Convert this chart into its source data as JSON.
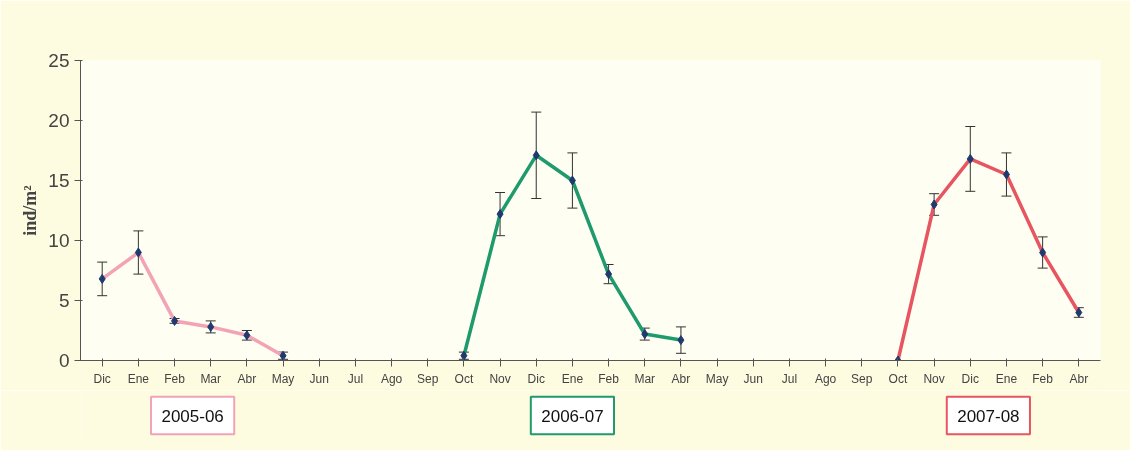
{
  "chart_data": {
    "type": "line",
    "ylabel": "ind/m²",
    "categories": [
      "Dic",
      "Ene",
      "Feb",
      "Mar",
      "Abr",
      "May",
      "Jun",
      "Jul",
      "Ago",
      "Sep",
      "Oct",
      "Nov",
      "Dic",
      "Ene",
      "Feb",
      "Mar",
      "Abr",
      "May",
      "Jun",
      "Jul",
      "Ago",
      "Sep",
      "Oct",
      "Nov",
      "Dic",
      "Ene",
      "Feb",
      "Abr"
    ],
    "series": [
      {
        "name": "2005-06",
        "color": "#f2a3b5",
        "values": [
          6.8,
          9.0,
          3.3,
          2.8,
          2.1,
          0.4,
          null,
          null,
          null,
          null,
          null,
          null,
          null,
          null,
          null,
          null,
          null,
          null,
          null,
          null,
          null,
          null,
          null,
          null,
          null,
          null,
          null,
          null
        ],
        "errors": [
          1.4,
          1.8,
          0.2,
          0.5,
          0.4,
          0.3,
          null,
          null,
          null,
          null,
          null,
          null,
          null,
          null,
          null,
          null,
          null,
          null,
          null,
          null,
          null,
          null,
          null,
          null,
          null,
          null,
          null,
          null
        ]
      },
      {
        "name": "2006-07",
        "color": "#1e9a6c",
        "values": [
          null,
          null,
          null,
          null,
          null,
          null,
          null,
          null,
          null,
          null,
          0.4,
          12.2,
          17.1,
          15.0,
          7.2,
          2.2,
          1.7,
          null,
          null,
          null,
          null,
          null,
          null,
          null,
          null,
          null,
          null,
          null
        ],
        "errors": [
          null,
          null,
          null,
          null,
          null,
          null,
          null,
          null,
          null,
          null,
          0.3,
          1.8,
          3.6,
          2.3,
          0.8,
          0.5,
          1.1,
          null,
          null,
          null,
          null,
          null,
          null,
          null,
          null,
          null,
          null,
          null
        ]
      },
      {
        "name": "2007-08",
        "color": "#e65560",
        "values": [
          null,
          null,
          null,
          null,
          null,
          null,
          null,
          null,
          null,
          null,
          null,
          null,
          null,
          null,
          null,
          null,
          null,
          null,
          null,
          null,
          null,
          null,
          0,
          13.0,
          16.8,
          15.5,
          9.0,
          4.0
        ],
        "errors": [
          null,
          null,
          null,
          null,
          null,
          null,
          null,
          null,
          null,
          null,
          null,
          null,
          null,
          null,
          null,
          null,
          null,
          null,
          null,
          null,
          null,
          null,
          null,
          0.9,
          2.7,
          1.8,
          1.3,
          0.4
        ]
      }
    ],
    "ylim": [
      0,
      25
    ],
    "yticks": [
      0,
      5,
      10,
      15,
      20,
      25
    ],
    "grid": false,
    "marker": "diamond",
    "line_style": "solid"
  }
}
